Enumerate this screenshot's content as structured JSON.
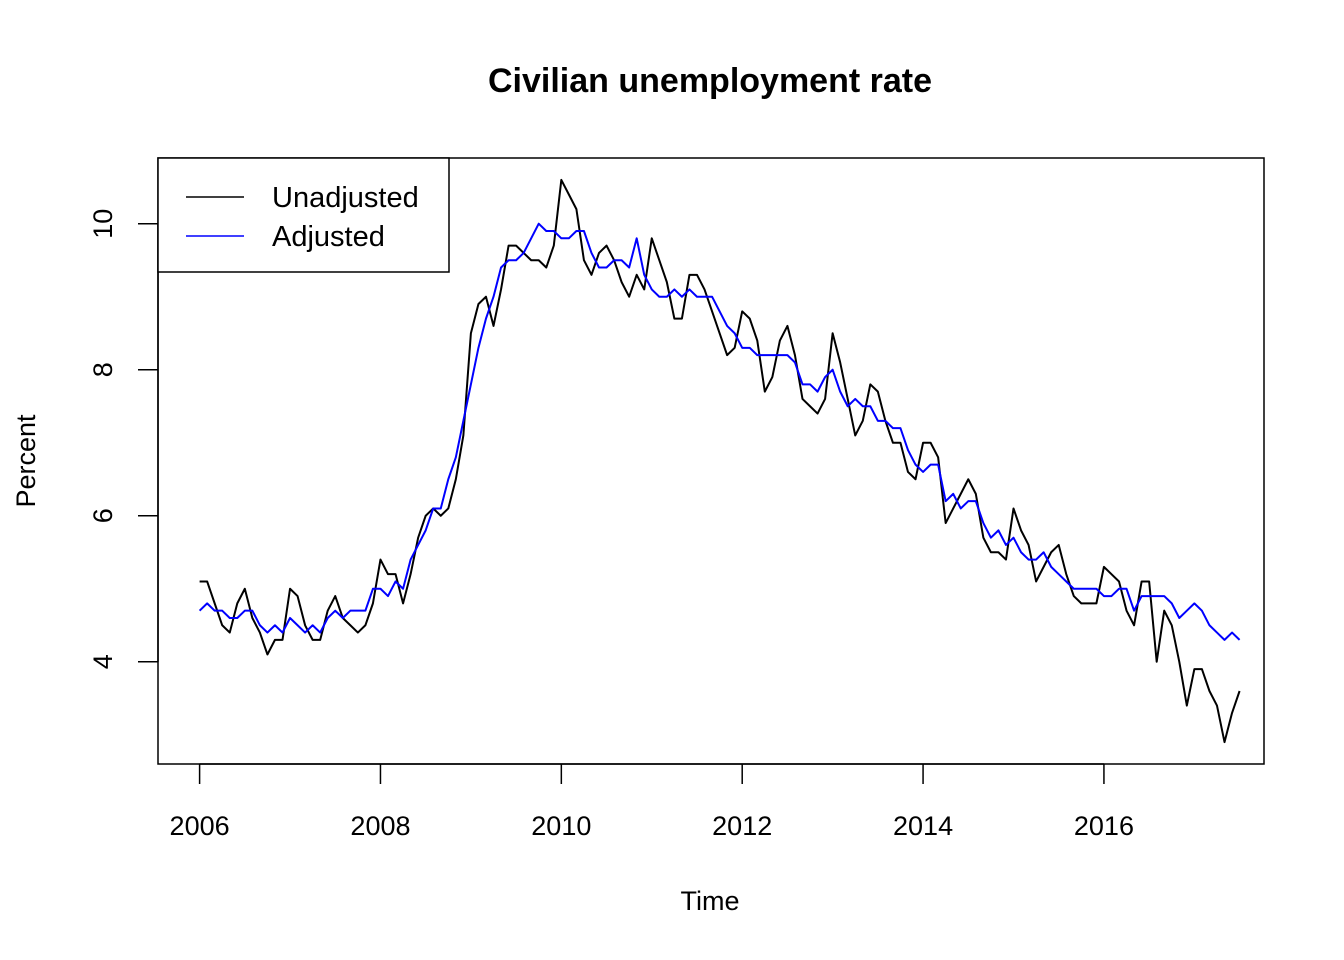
{
  "chart_data": {
    "type": "line",
    "title": "Civilian unemployment rate",
    "xlabel": "Time",
    "ylabel": "Percent",
    "xlim": [
      2005.54,
      2017.77
    ],
    "ylim": [
      2.6,
      10.9
    ],
    "x_ticks": [
      2006,
      2008,
      2010,
      2012,
      2014,
      2016
    ],
    "y_ticks": [
      4,
      6,
      8,
      10
    ],
    "grid": false,
    "legend_position": "top-left",
    "x_start": 2006,
    "x_step": 0.08333333,
    "series": [
      {
        "name": "Unadjusted",
        "color": "#000000",
        "values": [
          5.1,
          5.1,
          4.8,
          4.5,
          4.4,
          4.8,
          5.0,
          4.6,
          4.4,
          4.1,
          4.3,
          4.3,
          5.0,
          4.9,
          4.5,
          4.3,
          4.3,
          4.7,
          4.9,
          4.6,
          4.5,
          4.4,
          4.5,
          4.8,
          5.4,
          5.2,
          5.2,
          4.8,
          5.2,
          5.7,
          6.0,
          6.1,
          6.0,
          6.1,
          6.5,
          7.1,
          8.5,
          8.9,
          9.0,
          8.6,
          9.1,
          9.7,
          9.7,
          9.6,
          9.5,
          9.5,
          9.4,
          9.7,
          10.6,
          10.4,
          10.2,
          9.5,
          9.3,
          9.6,
          9.7,
          9.5,
          9.2,
          9.0,
          9.3,
          9.1,
          9.8,
          9.5,
          9.2,
          8.7,
          8.7,
          9.3,
          9.3,
          9.1,
          8.8,
          8.5,
          8.2,
          8.3,
          8.8,
          8.7,
          8.4,
          7.7,
          7.9,
          8.4,
          8.6,
          8.2,
          7.6,
          7.5,
          7.4,
          7.6,
          8.5,
          8.1,
          7.6,
          7.1,
          7.3,
          7.8,
          7.7,
          7.3,
          7.0,
          7.0,
          6.6,
          6.5,
          7.0,
          7.0,
          6.8,
          5.9,
          6.1,
          6.3,
          6.5,
          6.3,
          5.7,
          5.5,
          5.5,
          5.4,
          6.1,
          5.8,
          5.6,
          5.1,
          5.3,
          5.5,
          5.6,
          5.2,
          4.9,
          4.8,
          4.8,
          4.8,
          5.3,
          5.2,
          5.1,
          4.7,
          4.5,
          5.1,
          5.1,
          4.0,
          4.7,
          4.5,
          4.0,
          3.4,
          3.9,
          3.9,
          3.6,
          3.4,
          2.9,
          3.3,
          3.6
        ]
      },
      {
        "name": "Adjusted",
        "color": "#0000ff",
        "values": [
          4.7,
          4.8,
          4.7,
          4.7,
          4.6,
          4.6,
          4.7,
          4.7,
          4.5,
          4.4,
          4.5,
          4.4,
          4.6,
          4.5,
          4.4,
          4.5,
          4.4,
          4.6,
          4.7,
          4.6,
          4.7,
          4.7,
          4.7,
          5.0,
          5.0,
          4.9,
          5.1,
          5.0,
          5.4,
          5.6,
          5.8,
          6.1,
          6.1,
          6.5,
          6.8,
          7.3,
          7.8,
          8.3,
          8.7,
          9.0,
          9.4,
          9.5,
          9.5,
          9.6,
          9.8,
          10.0,
          9.9,
          9.9,
          9.8,
          9.8,
          9.9,
          9.9,
          9.6,
          9.4,
          9.4,
          9.5,
          9.5,
          9.4,
          9.8,
          9.3,
          9.1,
          9.0,
          9.0,
          9.1,
          9.0,
          9.1,
          9.0,
          9.0,
          9.0,
          8.8,
          8.6,
          8.5,
          8.3,
          8.3,
          8.2,
          8.2,
          8.2,
          8.2,
          8.2,
          8.1,
          7.8,
          7.8,
          7.7,
          7.9,
          8.0,
          7.7,
          7.5,
          7.6,
          7.5,
          7.5,
          7.3,
          7.3,
          7.2,
          7.2,
          6.9,
          6.7,
          6.6,
          6.7,
          6.7,
          6.2,
          6.3,
          6.1,
          6.2,
          6.2,
          5.9,
          5.7,
          5.8,
          5.6,
          5.7,
          5.5,
          5.4,
          5.4,
          5.5,
          5.3,
          5.2,
          5.1,
          5.0,
          5.0,
          5.0,
          5.0,
          4.9,
          4.9,
          5.0,
          5.0,
          4.7,
          4.9,
          4.9,
          4.9,
          4.9,
          4.8,
          4.6,
          4.7,
          4.8,
          4.7,
          4.5,
          4.4,
          4.3,
          4.4,
          4.3
        ]
      }
    ]
  }
}
